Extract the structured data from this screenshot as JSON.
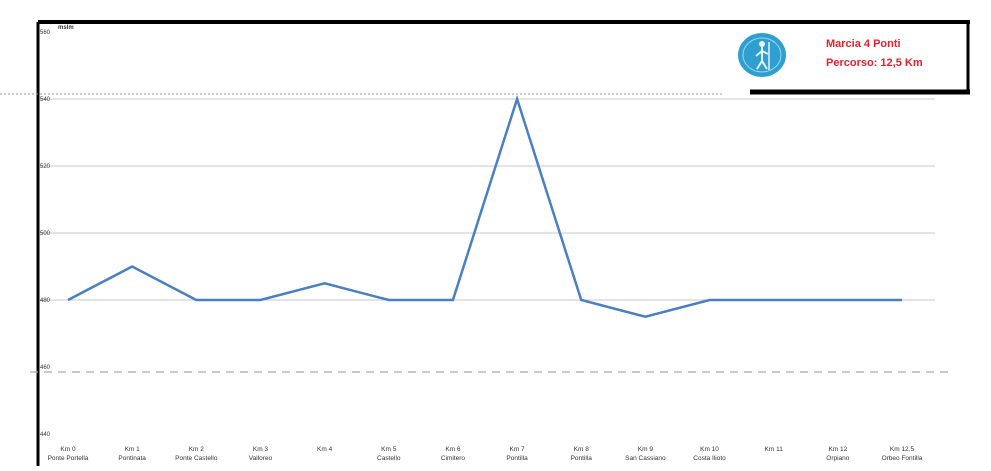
{
  "chart_data": {
    "type": "line",
    "title": "Marcia 4 Ponti",
    "subtitle": "Percorso: 12,5 Km",
    "y_unit_label": "mslm",
    "y_tick_labels": [
      "440",
      "460",
      "480",
      "500",
      "520",
      "540",
      "560"
    ],
    "ylim": [
      440,
      560
    ],
    "grid": true,
    "categories": [
      "Km 0  Ponte Portella",
      "Km 1 Pontinata",
      "Km 2 Ponte Castello",
      "Km 3 Valloreo",
      "Km 4",
      "Km 5 Castello",
      "Km 6 Cimitero",
      "Km 7 Pontilla",
      "Km 8 Pontilla",
      "Km 9 San Cassiano",
      "Km 10 Costa Ilioto",
      "Km 11",
      "Km 12 Orpiano",
      "Km 12,5 Orbeo Fontilla"
    ],
    "series": [
      {
        "color": "#4a7fc1",
        "values": [
          480,
          490,
          480,
          480,
          485,
          480,
          480,
          540,
          480,
          475,
          480,
          480,
          480,
          480
        ]
      }
    ]
  },
  "colors": {
    "line": "#4a7fc1",
    "title": "#e8202a",
    "logo": "#2e9fd0"
  },
  "logo_icon": "pilgrim-logo-icon"
}
